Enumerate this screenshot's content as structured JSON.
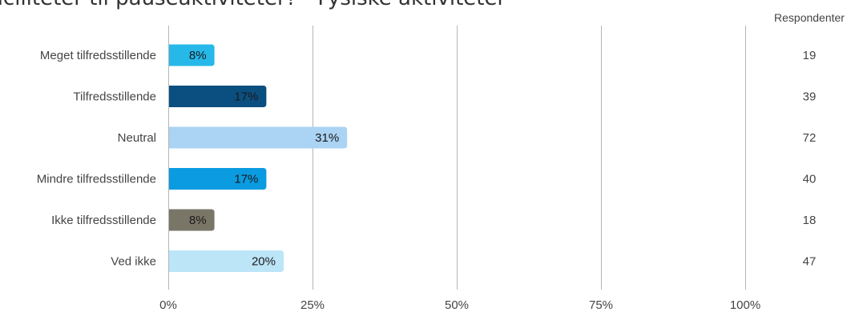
{
  "title": "aciliteter til pauseaktiviteter? - Fysiske aktiviteter",
  "respondents_header": "Respondenter",
  "chart_data": {
    "type": "bar",
    "orientation": "horizontal",
    "categories": [
      "Meget tilfredsstillende",
      "Tilfredsstillende",
      "Neutral",
      "Mindre tilfredsstillende",
      "Ikke tilfredsstillende",
      "Ved ikke"
    ],
    "values": [
      8,
      17,
      31,
      17,
      8,
      20
    ],
    "value_labels": [
      "8%",
      "17%",
      "31%",
      "17%",
      "8%",
      "20%"
    ],
    "respondents": [
      "19",
      "39",
      "72",
      "40",
      "18",
      "47"
    ],
    "colors": [
      "#27b8ea",
      "#0b4f80",
      "#abd3f3",
      "#0a9be0",
      "#7a7667",
      "#bde5f8"
    ],
    "label_colors": [
      "#1a1a1a",
      "#1a1a1a",
      "#1a1a1a",
      "#1a1a1a",
      "#1a1a1a",
      "#1a1a1a"
    ],
    "xlim": [
      0,
      100
    ],
    "x_ticks": [
      0,
      25,
      50,
      75,
      100
    ],
    "x_tick_labels": [
      "0%",
      "25%",
      "50%",
      "75%",
      "100%"
    ],
    "grid": true
  }
}
